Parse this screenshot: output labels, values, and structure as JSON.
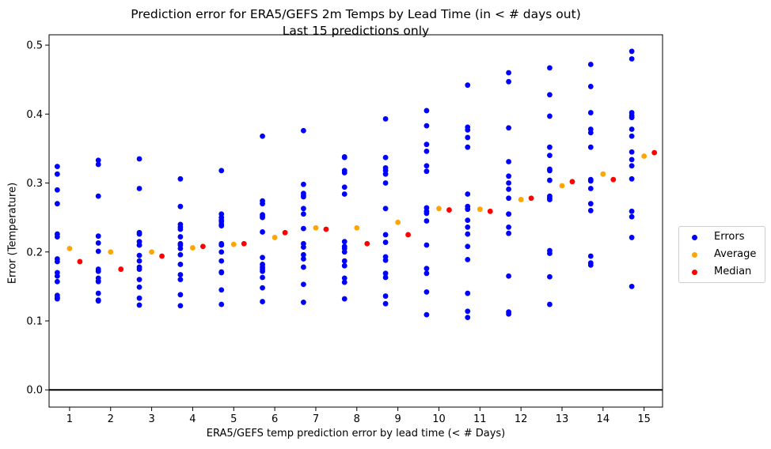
{
  "chart_data": {
    "type": "scatter",
    "title": "Prediction error for ERA5/GEFS 2m Temps by Lead Time (in < # days out)",
    "subtitle": "Last 15 predictions only",
    "xlabel": "ERA5/GEFS temp prediction error by lead time (< # Days)",
    "ylabel": "Error (Temperature)",
    "xlim": [
      0.5,
      15.45
    ],
    "ylim": [
      -0.025,
      0.515
    ],
    "x_ticks": [
      1,
      2,
      3,
      4,
      5,
      6,
      7,
      8,
      9,
      10,
      11,
      12,
      13,
      14,
      15
    ],
    "y_ticks": [
      0.0,
      0.1,
      0.2,
      0.3,
      0.4,
      0.5
    ],
    "y_tick_labels": [
      "0.0",
      "0.1",
      "0.2",
      "0.3",
      "0.4",
      "0.5"
    ],
    "grid": false,
    "hline": 0.0,
    "legend_position": "center-right outside",
    "series": [
      {
        "name": "Errors",
        "color": "#0000ff",
        "points": [
          [
            0.7,
            0.324
          ],
          [
            0.7,
            0.313
          ],
          [
            0.7,
            0.29
          ],
          [
            0.7,
            0.27
          ],
          [
            0.7,
            0.226
          ],
          [
            0.7,
            0.222
          ],
          [
            0.7,
            0.19
          ],
          [
            0.7,
            0.186
          ],
          [
            0.7,
            0.17
          ],
          [
            0.7,
            0.165
          ],
          [
            0.7,
            0.157
          ],
          [
            0.7,
            0.137
          ],
          [
            0.7,
            0.133
          ],
          [
            0.7,
            0.134
          ],
          [
            0.7,
            0.132
          ],
          [
            1.7,
            0.333
          ],
          [
            1.7,
            0.327
          ],
          [
            1.7,
            0.281
          ],
          [
            1.7,
            0.223
          ],
          [
            1.7,
            0.213
          ],
          [
            1.7,
            0.201
          ],
          [
            1.7,
            0.175
          ],
          [
            1.7,
            0.172
          ],
          [
            1.7,
            0.162
          ],
          [
            1.7,
            0.158
          ],
          [
            1.7,
            0.14
          ],
          [
            1.7,
            0.13
          ],
          [
            1.7,
            0.129
          ],
          [
            1.7,
            0.13
          ],
          [
            1.7,
            0.157
          ],
          [
            2.7,
            0.335
          ],
          [
            2.7,
            0.292
          ],
          [
            2.7,
            0.228
          ],
          [
            2.7,
            0.226
          ],
          [
            2.7,
            0.215
          ],
          [
            2.7,
            0.21
          ],
          [
            2.7,
            0.195
          ],
          [
            2.7,
            0.187
          ],
          [
            2.7,
            0.178
          ],
          [
            2.7,
            0.175
          ],
          [
            2.7,
            0.16
          ],
          [
            2.7,
            0.149
          ],
          [
            2.7,
            0.133
          ],
          [
            2.7,
            0.123
          ],
          [
            2.7,
            0.21
          ],
          [
            3.7,
            0.306
          ],
          [
            3.7,
            0.266
          ],
          [
            3.7,
            0.24
          ],
          [
            3.7,
            0.236
          ],
          [
            3.7,
            0.233
          ],
          [
            3.7,
            0.222
          ],
          [
            3.7,
            0.212
          ],
          [
            3.7,
            0.205
          ],
          [
            3.7,
            0.196
          ],
          [
            3.7,
            0.182
          ],
          [
            3.7,
            0.167
          ],
          [
            3.7,
            0.16
          ],
          [
            3.7,
            0.138
          ],
          [
            3.7,
            0.122
          ],
          [
            3.7,
            0.21
          ],
          [
            4.7,
            0.318
          ],
          [
            4.7,
            0.255
          ],
          [
            4.7,
            0.25
          ],
          [
            4.7,
            0.244
          ],
          [
            4.7,
            0.24
          ],
          [
            4.7,
            0.238
          ],
          [
            4.7,
            0.212
          ],
          [
            4.7,
            0.21
          ],
          [
            4.7,
            0.2
          ],
          [
            4.7,
            0.187
          ],
          [
            4.7,
            0.17
          ],
          [
            4.7,
            0.145
          ],
          [
            4.7,
            0.124
          ],
          [
            4.7,
            0.246
          ],
          [
            4.7,
            0.171
          ],
          [
            5.7,
            0.368
          ],
          [
            5.7,
            0.274
          ],
          [
            5.7,
            0.27
          ],
          [
            5.7,
            0.254
          ],
          [
            5.7,
            0.25
          ],
          [
            5.7,
            0.229
          ],
          [
            5.7,
            0.192
          ],
          [
            5.7,
            0.182
          ],
          [
            5.7,
            0.178
          ],
          [
            5.7,
            0.175
          ],
          [
            5.7,
            0.172
          ],
          [
            5.7,
            0.163
          ],
          [
            5.7,
            0.148
          ],
          [
            5.7,
            0.128
          ],
          [
            5.7,
            0.252
          ],
          [
            6.7,
            0.376
          ],
          [
            6.7,
            0.298
          ],
          [
            6.7,
            0.285
          ],
          [
            6.7,
            0.282
          ],
          [
            6.7,
            0.28
          ],
          [
            6.7,
            0.263
          ],
          [
            6.7,
            0.255
          ],
          [
            6.7,
            0.234
          ],
          [
            6.7,
            0.212
          ],
          [
            6.7,
            0.207
          ],
          [
            6.7,
            0.196
          ],
          [
            6.7,
            0.178
          ],
          [
            6.7,
            0.153
          ],
          [
            6.7,
            0.127
          ],
          [
            6.7,
            0.19
          ],
          [
            7.7,
            0.338
          ],
          [
            7.7,
            0.337
          ],
          [
            7.7,
            0.318
          ],
          [
            7.7,
            0.315
          ],
          [
            7.7,
            0.294
          ],
          [
            7.7,
            0.284
          ],
          [
            7.7,
            0.215
          ],
          [
            7.7,
            0.208
          ],
          [
            7.7,
            0.205
          ],
          [
            7.7,
            0.187
          ],
          [
            7.7,
            0.18
          ],
          [
            7.7,
            0.162
          ],
          [
            7.7,
            0.156
          ],
          [
            7.7,
            0.132
          ],
          [
            7.7,
            0.2
          ],
          [
            8.7,
            0.393
          ],
          [
            8.7,
            0.337
          ],
          [
            8.7,
            0.322
          ],
          [
            8.7,
            0.318
          ],
          [
            8.7,
            0.313
          ],
          [
            8.7,
            0.3
          ],
          [
            8.7,
            0.263
          ],
          [
            8.7,
            0.225
          ],
          [
            8.7,
            0.214
          ],
          [
            8.7,
            0.193
          ],
          [
            8.7,
            0.188
          ],
          [
            8.7,
            0.169
          ],
          [
            8.7,
            0.163
          ],
          [
            8.7,
            0.136
          ],
          [
            8.7,
            0.125
          ],
          [
            9.7,
            0.405
          ],
          [
            9.7,
            0.383
          ],
          [
            9.7,
            0.356
          ],
          [
            9.7,
            0.346
          ],
          [
            9.7,
            0.325
          ],
          [
            9.7,
            0.317
          ],
          [
            9.7,
            0.264
          ],
          [
            9.7,
            0.259
          ],
          [
            9.7,
            0.245
          ],
          [
            9.7,
            0.21
          ],
          [
            9.7,
            0.176
          ],
          [
            9.7,
            0.169
          ],
          [
            9.7,
            0.142
          ],
          [
            9.7,
            0.109
          ],
          [
            9.7,
            0.256
          ],
          [
            10.7,
            0.442
          ],
          [
            10.7,
            0.381
          ],
          [
            10.7,
            0.377
          ],
          [
            10.7,
            0.366
          ],
          [
            10.7,
            0.352
          ],
          [
            10.7,
            0.284
          ],
          [
            10.7,
            0.266
          ],
          [
            10.7,
            0.262
          ],
          [
            10.7,
            0.246
          ],
          [
            10.7,
            0.236
          ],
          [
            10.7,
            0.226
          ],
          [
            10.7,
            0.208
          ],
          [
            10.7,
            0.189
          ],
          [
            10.7,
            0.14
          ],
          [
            10.7,
            0.114
          ],
          [
            10.7,
            0.105
          ],
          [
            11.7,
            0.46
          ],
          [
            11.7,
            0.447
          ],
          [
            11.7,
            0.38
          ],
          [
            11.7,
            0.331
          ],
          [
            11.7,
            0.31
          ],
          [
            11.7,
            0.3
          ],
          [
            11.7,
            0.291
          ],
          [
            11.7,
            0.278
          ],
          [
            11.7,
            0.255
          ],
          [
            11.7,
            0.255
          ],
          [
            11.7,
            0.236
          ],
          [
            11.7,
            0.227
          ],
          [
            11.7,
            0.165
          ],
          [
            11.7,
            0.113
          ],
          [
            11.7,
            0.11
          ],
          [
            12.7,
            0.467
          ],
          [
            12.7,
            0.428
          ],
          [
            12.7,
            0.397
          ],
          [
            12.7,
            0.352
          ],
          [
            12.7,
            0.34
          ],
          [
            12.7,
            0.32
          ],
          [
            12.7,
            0.318
          ],
          [
            12.7,
            0.304
          ],
          [
            12.7,
            0.281
          ],
          [
            12.7,
            0.278
          ],
          [
            12.7,
            0.202
          ],
          [
            12.7,
            0.198
          ],
          [
            12.7,
            0.164
          ],
          [
            12.7,
            0.124
          ],
          [
            12.7,
            0.276
          ],
          [
            13.7,
            0.472
          ],
          [
            13.7,
            0.44
          ],
          [
            13.7,
            0.402
          ],
          [
            13.7,
            0.378
          ],
          [
            13.7,
            0.373
          ],
          [
            13.7,
            0.352
          ],
          [
            13.7,
            0.305
          ],
          [
            13.7,
            0.303
          ],
          [
            13.7,
            0.292
          ],
          [
            13.7,
            0.27
          ],
          [
            13.7,
            0.26
          ],
          [
            13.7,
            0.194
          ],
          [
            13.7,
            0.184
          ],
          [
            13.7,
            0.181
          ],
          [
            13.7,
            0.304
          ],
          [
            14.7,
            0.491
          ],
          [
            14.7,
            0.48
          ],
          [
            14.7,
            0.402
          ],
          [
            14.7,
            0.398
          ],
          [
            14.7,
            0.395
          ],
          [
            14.7,
            0.378
          ],
          [
            14.7,
            0.368
          ],
          [
            14.7,
            0.345
          ],
          [
            14.7,
            0.334
          ],
          [
            14.7,
            0.325
          ],
          [
            14.7,
            0.306
          ],
          [
            14.7,
            0.259
          ],
          [
            14.7,
            0.251
          ],
          [
            14.7,
            0.221
          ],
          [
            14.7,
            0.15
          ]
        ]
      },
      {
        "name": "Average",
        "color": "#ffa500",
        "points": [
          [
            1,
            0.205
          ],
          [
            2,
            0.2
          ],
          [
            3,
            0.2
          ],
          [
            4,
            0.206
          ],
          [
            5,
            0.211
          ],
          [
            6,
            0.221
          ],
          [
            7,
            0.235
          ],
          [
            8,
            0.235
          ],
          [
            9,
            0.243
          ],
          [
            10,
            0.263
          ],
          [
            11,
            0.262
          ],
          [
            12,
            0.276
          ],
          [
            13,
            0.296
          ],
          [
            14,
            0.313
          ],
          [
            15,
            0.339
          ]
        ]
      },
      {
        "name": "Median",
        "color": "#ff0000",
        "points": [
          [
            1.25,
            0.186
          ],
          [
            2.25,
            0.175
          ],
          [
            3.25,
            0.194
          ],
          [
            4.25,
            0.208
          ],
          [
            5.25,
            0.212
          ],
          [
            6.25,
            0.228
          ],
          [
            7.25,
            0.233
          ],
          [
            8.25,
            0.212
          ],
          [
            9.25,
            0.225
          ],
          [
            10.25,
            0.261
          ],
          [
            11.25,
            0.259
          ],
          [
            12.25,
            0.278
          ],
          [
            13.25,
            0.302
          ],
          [
            14.25,
            0.305
          ],
          [
            15.25,
            0.344
          ]
        ]
      }
    ]
  },
  "legend": {
    "items": [
      {
        "label": "Errors",
        "color": "#0000ff"
      },
      {
        "label": "Average",
        "color": "#ffa500"
      },
      {
        "label": "Median",
        "color": "#ff0000"
      }
    ]
  }
}
